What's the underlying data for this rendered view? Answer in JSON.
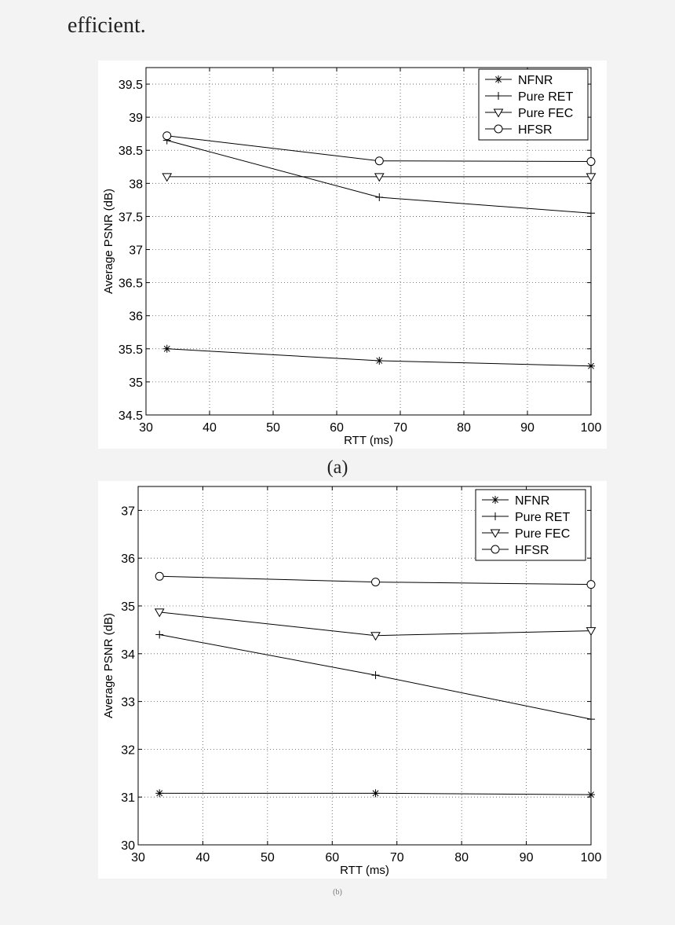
{
  "page": {
    "top_text": "efficient.",
    "caption_a": "(a)",
    "caption_b": "(b)"
  },
  "chart_data": [
    {
      "type": "line",
      "title": "",
      "xlabel": "RTT (ms)",
      "ylabel": "Average PSNR (dB)",
      "xlim": [
        30,
        100
      ],
      "ylim": [
        34.5,
        39.75
      ],
      "xticks": [
        30,
        40,
        50,
        60,
        70,
        80,
        90,
        100
      ],
      "yticks": [
        34.5,
        35,
        35.5,
        36,
        36.5,
        37,
        37.5,
        38,
        38.5,
        39,
        39.5
      ],
      "ytick_labels": [
        "34.5",
        "35",
        "35.5",
        "36",
        "36.5",
        "37",
        "37.5",
        "38",
        "38.5",
        "39",
        "39.5"
      ],
      "grid": true,
      "legend_position": "top-right",
      "x": [
        33.3,
        66.7,
        100
      ],
      "series": [
        {
          "name": "NFNR",
          "marker": "star",
          "values": [
            35.5,
            35.32,
            35.24
          ]
        },
        {
          "name": "Pure RET",
          "marker": "plus",
          "values": [
            38.65,
            37.79,
            37.55
          ]
        },
        {
          "name": "Pure FEC",
          "marker": "triangle-down",
          "values": [
            38.1,
            38.1,
            38.1
          ]
        },
        {
          "name": "HFSR",
          "marker": "circle",
          "values": [
            38.72,
            38.34,
            38.33
          ]
        }
      ]
    },
    {
      "type": "line",
      "title": "",
      "xlabel": "RTT (ms)",
      "ylabel": "Average PSNR (dB)",
      "xlim": [
        30,
        100
      ],
      "ylim": [
        30,
        37.5
      ],
      "xticks": [
        30,
        40,
        50,
        60,
        70,
        80,
        90,
        100
      ],
      "yticks": [
        30,
        31,
        32,
        33,
        34,
        35,
        36,
        37
      ],
      "ytick_labels": [
        "30",
        "31",
        "32",
        "33",
        "34",
        "35",
        "36",
        "37"
      ],
      "grid": true,
      "legend_position": "top-right",
      "x": [
        33.3,
        66.7,
        100
      ],
      "series": [
        {
          "name": "NFNR",
          "marker": "star",
          "values": [
            31.08,
            31.08,
            31.05
          ]
        },
        {
          "name": "Pure RET",
          "marker": "plus",
          "values": [
            34.4,
            33.55,
            32.63
          ]
        },
        {
          "name": "Pure FEC",
          "marker": "triangle-down",
          "values": [
            34.87,
            34.38,
            34.48
          ]
        },
        {
          "name": "HFSR",
          "marker": "circle",
          "values": [
            35.62,
            35.5,
            35.45
          ]
        }
      ]
    }
  ]
}
